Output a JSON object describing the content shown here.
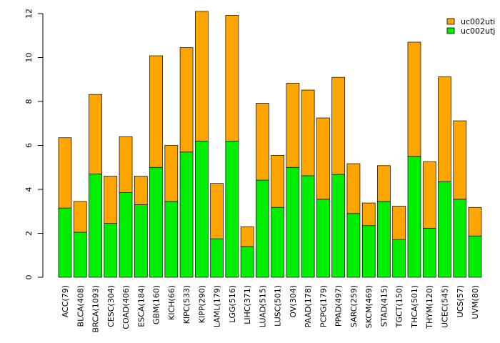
{
  "chart_data": {
    "type": "bar",
    "stacked": true,
    "title": "",
    "xlabel": "",
    "ylabel": "",
    "ylim": [
      0,
      12
    ],
    "yticks": [
      0,
      2,
      4,
      6,
      8,
      10,
      12
    ],
    "legend_position": "top-right",
    "categories": [
      "ACC(79)",
      "BLCA(408)",
      "BRCA(1093)",
      "CESC(304)",
      "COAD(406)",
      "ESCA(184)",
      "GBM(160)",
      "KICH(66)",
      "KIPC(533)",
      "KIPP(290)",
      "LAML(179)",
      "LGG(516)",
      "LIHC(371)",
      "LUAD(515)",
      "LUSC(501)",
      "OV(304)",
      "PAAD(178)",
      "PCPG(179)",
      "PPAD(497)",
      "SARC(259)",
      "SKCM(469)",
      "STAD(415)",
      "TGCT(150)",
      "THCA(501)",
      "THYM(120)",
      "UCEC(545)",
      "UCS(57)",
      "UVM(80)"
    ],
    "series": [
      {
        "name": "uc002utj",
        "color": "#00ee00",
        "values": [
          3.15,
          2.05,
          4.7,
          2.45,
          3.85,
          3.3,
          5.0,
          3.45,
          5.7,
          6.2,
          1.75,
          6.2,
          1.4,
          4.42,
          3.18,
          5.0,
          4.62,
          3.55,
          4.68,
          2.9,
          2.35,
          3.45,
          1.72,
          5.5,
          2.23,
          4.35,
          3.55,
          1.88
        ]
      },
      {
        "name": "uc002uti",
        "color": "#ffa500",
        "values": [
          3.2,
          1.4,
          3.62,
          2.15,
          2.55,
          1.3,
          5.08,
          2.55,
          4.75,
          5.9,
          2.52,
          5.72,
          0.9,
          3.5,
          2.37,
          3.83,
          3.9,
          3.7,
          4.42,
          2.27,
          1.03,
          1.63,
          1.52,
          5.2,
          3.03,
          4.77,
          3.57,
          1.3
        ]
      }
    ]
  }
}
